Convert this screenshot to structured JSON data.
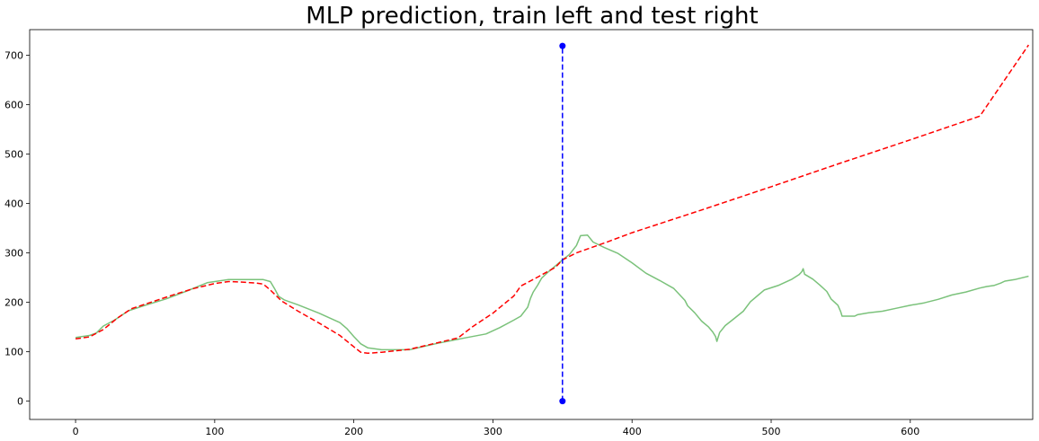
{
  "chart_data": {
    "type": "line",
    "title": "MLP prediction, train left and test right",
    "xlabel": "",
    "ylabel": "",
    "xlim": [
      -33,
      688
    ],
    "ylim": [
      -37,
      752
    ],
    "grid": false,
    "x_ticks": [
      0,
      100,
      200,
      300,
      400,
      500,
      600
    ],
    "y_ticks": [
      0,
      100,
      200,
      300,
      400,
      500,
      600,
      700
    ],
    "colors": {
      "actual": "#7bc27b",
      "predicted": "#ff0000",
      "split": "#0000ff"
    },
    "series": [
      {
        "style": "solid",
        "points": [
          [
            0,
            129
          ],
          [
            10,
            133
          ],
          [
            15,
            138
          ],
          [
            20,
            152
          ],
          [
            28,
            164
          ],
          [
            38,
            183
          ],
          [
            50,
            194
          ],
          [
            65,
            207
          ],
          [
            80,
            223
          ],
          [
            95,
            240
          ],
          [
            110,
            246
          ],
          [
            125,
            246
          ],
          [
            135,
            246
          ],
          [
            140,
            242
          ],
          [
            143,
            228
          ],
          [
            146,
            212
          ],
          [
            150,
            205
          ],
          [
            160,
            195
          ],
          [
            175,
            178
          ],
          [
            190,
            159
          ],
          [
            195,
            147
          ],
          [
            200,
            131
          ],
          [
            205,
            116
          ],
          [
            210,
            108
          ],
          [
            220,
            104
          ],
          [
            240,
            104
          ],
          [
            260,
            117
          ],
          [
            280,
            128
          ],
          [
            295,
            136
          ],
          [
            305,
            149
          ],
          [
            315,
            164
          ],
          [
            320,
            172
          ],
          [
            325,
            190
          ],
          [
            327,
            208
          ],
          [
            329,
            221
          ],
          [
            332,
            234
          ],
          [
            335,
            249
          ],
          [
            340,
            262
          ],
          [
            345,
            274
          ],
          [
            350,
            286
          ],
          [
            355,
            297
          ],
          [
            360,
            315
          ],
          [
            363,
            335
          ],
          [
            368,
            336
          ],
          [
            372,
            322
          ],
          [
            380,
            311
          ],
          [
            390,
            299
          ],
          [
            400,
            280
          ],
          [
            410,
            259
          ],
          [
            420,
            244
          ],
          [
            430,
            228
          ],
          [
            438,
            204
          ],
          [
            440,
            193
          ],
          [
            445,
            179
          ],
          [
            450,
            162
          ],
          [
            455,
            150
          ],
          [
            458,
            140
          ],
          [
            460,
            131
          ],
          [
            461,
            121
          ],
          [
            463,
            139
          ],
          [
            467,
            153
          ],
          [
            472,
            164
          ],
          [
            480,
            182
          ],
          [
            485,
            201
          ],
          [
            490,
            213
          ],
          [
            495,
            225
          ],
          [
            505,
            234
          ],
          [
            515,
            247
          ],
          [
            520,
            256
          ],
          [
            522,
            262
          ],
          [
            523,
            268
          ],
          [
            524,
            257
          ],
          [
            530,
            247
          ],
          [
            535,
            235
          ],
          [
            540,
            222
          ],
          [
            543,
            207
          ],
          [
            548,
            194
          ],
          [
            550,
            181
          ],
          [
            551,
            172
          ],
          [
            560,
            172
          ],
          [
            562,
            175
          ],
          [
            570,
            179
          ],
          [
            580,
            182
          ],
          [
            590,
            188
          ],
          [
            600,
            194
          ],
          [
            610,
            199
          ],
          [
            620,
            206
          ],
          [
            630,
            215
          ],
          [
            640,
            221
          ],
          [
            650,
            229
          ],
          [
            655,
            232
          ],
          [
            660,
            234
          ],
          [
            665,
            239
          ],
          [
            668,
            243
          ],
          [
            675,
            246
          ],
          [
            685,
            253
          ]
        ]
      },
      {
        "style": "dashed",
        "points": [
          [
            0,
            126
          ],
          [
            10,
            130
          ],
          [
            20,
            145
          ],
          [
            30,
            168
          ],
          [
            40,
            187
          ],
          [
            55,
            201
          ],
          [
            70,
            215
          ],
          [
            85,
            228
          ],
          [
            100,
            238
          ],
          [
            110,
            242
          ],
          [
            120,
            241
          ],
          [
            130,
            239
          ],
          [
            135,
            237
          ],
          [
            140,
            225
          ],
          [
            148,
            203
          ],
          [
            160,
            182
          ],
          [
            175,
            158
          ],
          [
            190,
            133
          ],
          [
            200,
            110
          ],
          [
            205,
            99
          ],
          [
            210,
            97
          ],
          [
            220,
            99
          ],
          [
            240,
            105
          ],
          [
            260,
            118
          ],
          [
            275,
            128
          ],
          [
            285,
            150
          ],
          [
            300,
            178
          ],
          [
            315,
            213
          ],
          [
            320,
            233
          ],
          [
            332,
            251
          ],
          [
            345,
            271
          ],
          [
            350,
            286
          ],
          [
            360,
            300
          ],
          [
            380,
            320
          ],
          [
            400,
            341
          ],
          [
            450,
            387
          ],
          [
            500,
            434
          ],
          [
            550,
            482
          ],
          [
            600,
            529
          ],
          [
            650,
            577
          ],
          [
            685,
            721
          ]
        ]
      },
      {
        "style": "dashed-markers",
        "points": [
          [
            350,
            0
          ],
          [
            350,
            719
          ]
        ]
      }
    ]
  }
}
